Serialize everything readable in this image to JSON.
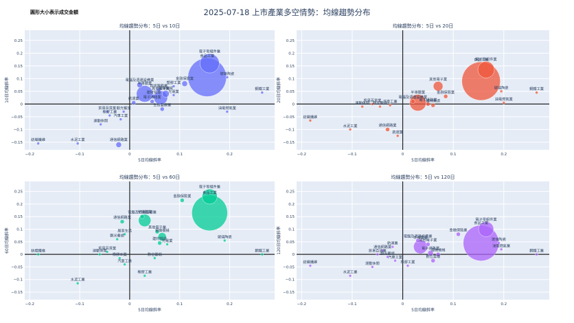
{
  "title": "2025-07-18 上市產業多空情勢：均線趨勢分布",
  "note": "圓形大小表示成交金額",
  "colors": {
    "grid": "#ffffff",
    "plot_bg": "#e5ecf6",
    "axis_line": "#222222",
    "tick": "#2a3f5f"
  },
  "chart_data": [
    {
      "type": "scatter",
      "title": "均線趨勢分布：5日 vs 10日",
      "xlabel": "5日均線斜率",
      "ylabel": "10日均線斜率",
      "color": "#636efa",
      "xlim": [
        -0.21,
        0.29
      ],
      "ylim": [
        -0.18,
        0.29
      ],
      "xticks": [
        -0.2,
        -0.1,
        0,
        0.1,
        0.2
      ],
      "xtick_labels": [
        "−0.2",
        "−0.1",
        "0",
        "0.1",
        "0.2"
      ],
      "yticks": [
        -0.15,
        -0.1,
        -0.05,
        0,
        0.05,
        0.1,
        0.15,
        0.2,
        0.25
      ],
      "ytick_labels": [
        "−0.15",
        "−0.1",
        "−0.05",
        "0",
        "0.05",
        "0.1",
        "0.15",
        "0.2",
        "0.25"
      ],
      "points": [
        {
          "label": "紡織纖維",
          "x": -0.183,
          "y": -0.155,
          "size": 2
        },
        {
          "label": "水泥工業",
          "x": -0.104,
          "y": -0.155,
          "size": 2
        },
        {
          "label": "通信網路業",
          "x": -0.022,
          "y": -0.16,
          "size": 4
        },
        {
          "label": "運動休閒",
          "x": -0.058,
          "y": -0.08,
          "size": 2
        },
        {
          "label": "貿易百貨業",
          "x": -0.045,
          "y": -0.03,
          "size": 2
        },
        {
          "label": "橡膠工業",
          "x": -0.04,
          "y": -0.045,
          "size": 2
        },
        {
          "label": "汽車工業",
          "x": -0.018,
          "y": -0.06,
          "size": 2
        },
        {
          "label": "觀光餐旅",
          "x": -0.012,
          "y": -0.03,
          "size": 2
        },
        {
          "label": "航運業",
          "x": 0.008,
          "y": 0.005,
          "size": 3
        },
        {
          "label": "電腦及週邊設備業",
          "x": 0.02,
          "y": 0.075,
          "size": 4
        },
        {
          "label": "半導體業",
          "x": 0.03,
          "y": 0.04,
          "size": 12
        },
        {
          "label": "建材營造",
          "x": 0.048,
          "y": 0.03,
          "size": 3
        },
        {
          "label": "電子通路業",
          "x": 0.045,
          "y": 0.01,
          "size": 3
        },
        {
          "label": "資訊服務業",
          "x": 0.058,
          "y": 0.055,
          "size": 3
        },
        {
          "label": "其他電子業",
          "x": 0.062,
          "y": 0.025,
          "size": 10
        },
        {
          "label": "生技醫療業",
          "x": 0.065,
          "y": -0.02,
          "size": 3
        },
        {
          "label": "電機機械",
          "x": 0.072,
          "y": 0.04,
          "size": 5
        },
        {
          "label": "光電業",
          "x": 0.088,
          "y": 0.035,
          "size": 2
        },
        {
          "label": "塑膠工業",
          "x": 0.088,
          "y": 0.07,
          "size": 2
        },
        {
          "label": "金融保險業",
          "x": 0.11,
          "y": 0.08,
          "size": 4
        },
        {
          "label": "電子零組件業",
          "x": 0.16,
          "y": 0.16,
          "size": 14
        },
        {
          "label": "食品工業",
          "x": 0.155,
          "y": 0.105,
          "size": 28
        },
        {
          "label": "油電燃氣業",
          "x": 0.195,
          "y": -0.03,
          "size": 2
        },
        {
          "label": "玻璃陶瓷",
          "x": 0.195,
          "y": 0.105,
          "size": 2
        },
        {
          "label": "鋼鐵工業",
          "x": 0.265,
          "y": 0.045,
          "size": 2
        }
      ]
    },
    {
      "type": "scatter",
      "title": "均線趨勢分布：5日 vs 20日",
      "xlabel": "5日均線斜率",
      "ylabel": "20日均線斜率",
      "color": "#ef553b",
      "xlim": [
        -0.21,
        0.29
      ],
      "ylim": [
        -0.18,
        0.29
      ],
      "xticks": [
        -0.2,
        -0.1,
        0,
        0.1,
        0.2
      ],
      "xtick_labels": [
        "−0.2",
        "−0.1",
        "0",
        "0.1",
        "0.2"
      ],
      "yticks": [
        -0.15,
        -0.1,
        -0.05,
        0,
        0.05,
        0.1,
        0.15,
        0.2,
        0.25
      ],
      "ytick_labels": [
        "−0.15",
        "−0.1",
        "−0.05",
        "0",
        "0.05",
        "0.1",
        "0.15",
        "0.2",
        "0.25"
      ],
      "points": [
        {
          "label": "紡織纖維",
          "x": -0.183,
          "y": -0.065,
          "size": 2
        },
        {
          "label": "水泥工業",
          "x": -0.104,
          "y": -0.1,
          "size": 2
        },
        {
          "label": "通信網路業",
          "x": -0.03,
          "y": -0.1,
          "size": 3
        },
        {
          "label": "航運業",
          "x": -0.01,
          "y": -0.125,
          "size": 2
        },
        {
          "label": "貿易百貨業",
          "x": -0.06,
          "y": 0.0,
          "size": 2
        },
        {
          "label": "運動休閒",
          "x": -0.08,
          "y": -0.01,
          "size": 2
        },
        {
          "label": "觀光餐旅",
          "x": -0.045,
          "y": -0.01,
          "size": 2
        },
        {
          "label": "汽車工業",
          "x": -0.025,
          "y": -0.005,
          "size": 2
        },
        {
          "label": "電腦及週邊設備業",
          "x": 0.02,
          "y": 0.01,
          "size": 3
        },
        {
          "label": "半導體業",
          "x": 0.03,
          "y": 0.005,
          "size": 12
        },
        {
          "label": "電子通路業",
          "x": 0.05,
          "y": 0.0,
          "size": 3
        },
        {
          "label": "建材營造",
          "x": 0.06,
          "y": -0.005,
          "size": 3
        },
        {
          "label": "其他電子業",
          "x": 0.07,
          "y": 0.07,
          "size": 7
        },
        {
          "label": "金融保險業",
          "x": 0.085,
          "y": 0.03,
          "size": 3
        },
        {
          "label": "電子零組件業",
          "x": 0.165,
          "y": 0.135,
          "size": 12
        },
        {
          "label": "食品工業",
          "x": 0.155,
          "y": 0.09,
          "size": 28
        },
        {
          "label": "玻璃陶瓷",
          "x": 0.195,
          "y": 0.05,
          "size": 2
        },
        {
          "label": "油電燃氣業",
          "x": 0.2,
          "y": 0.005,
          "size": 2
        },
        {
          "label": "鋼鐵工業",
          "x": 0.265,
          "y": 0.045,
          "size": 2
        }
      ]
    },
    {
      "type": "scatter",
      "title": "均線趨勢分布：5日 vs 60日",
      "xlabel": "5日均線斜率",
      "ylabel": "60日均線斜率",
      "color": "#00cc96",
      "xlim": [
        -0.21,
        0.29
      ],
      "ylim": [
        -0.18,
        0.29
      ],
      "xticks": [
        -0.2,
        -0.1,
        0,
        0.1,
        0.2
      ],
      "xtick_labels": [
        "−0.2",
        "−0.1",
        "0",
        "0.1",
        "0.2"
      ],
      "yticks": [
        -0.15,
        -0.1,
        -0.05,
        0,
        0.05,
        0.1,
        0.15,
        0.2,
        0.25
      ],
      "ytick_labels": [
        "−0.15",
        "−0.1",
        "−0.05",
        "0",
        "0.05",
        "0.1",
        "0.15",
        "0.2",
        "0.25"
      ],
      "points": [
        {
          "label": "紡織纖維",
          "x": -0.183,
          "y": 0.0,
          "size": 2
        },
        {
          "label": "水泥工業",
          "x": -0.104,
          "y": -0.115,
          "size": 2
        },
        {
          "label": "運動休閒",
          "x": -0.06,
          "y": 0.0,
          "size": 2
        },
        {
          "label": "貿易百貨業",
          "x": -0.045,
          "y": 0.01,
          "size": 2
        },
        {
          "label": "橡膠工業",
          "x": -0.02,
          "y": -0.015,
          "size": 2
        },
        {
          "label": "汽車工業",
          "x": -0.01,
          "y": -0.04,
          "size": 2
        },
        {
          "label": "通信網路業",
          "x": -0.015,
          "y": 0.13,
          "size": 3
        },
        {
          "label": "居家生活",
          "x": -0.01,
          "y": 0.08,
          "size": 2
        },
        {
          "label": "觀光餐旅",
          "x": -0.025,
          "y": 0.06,
          "size": 2
        },
        {
          "label": "電腦及週邊設備業",
          "x": 0.025,
          "y": 0.15,
          "size": 3
        },
        {
          "label": "半導體業",
          "x": 0.03,
          "y": 0.135,
          "size": 9
        },
        {
          "label": "其他電子業",
          "x": 0.055,
          "y": 0.09,
          "size": 3
        },
        {
          "label": "電機機械",
          "x": 0.065,
          "y": 0.07,
          "size": 6
        },
        {
          "label": "建材營造",
          "x": 0.06,
          "y": 0.045,
          "size": 3
        },
        {
          "label": "橡膠工業",
          "x": 0.03,
          "y": -0.085,
          "size": 2
        },
        {
          "label": "數位雲端",
          "x": 0.05,
          "y": -0.015,
          "size": 2
        },
        {
          "label": "光電業",
          "x": 0.075,
          "y": 0.04,
          "size": 2
        },
        {
          "label": "金融保險業",
          "x": 0.105,
          "y": 0.215,
          "size": 3
        },
        {
          "label": "電子零組件業",
          "x": 0.16,
          "y": 0.23,
          "size": 11
        },
        {
          "label": "食品工業",
          "x": 0.16,
          "y": 0.165,
          "size": 26
        },
        {
          "label": "玻璃陶瓷",
          "x": 0.19,
          "y": 0.055,
          "size": 2
        },
        {
          "label": "鋼鐵工業",
          "x": 0.265,
          "y": 0.0,
          "size": 2
        }
      ]
    },
    {
      "type": "scatter",
      "title": "均線趨勢分布：5日 vs 120日",
      "xlabel": "5日均線斜率",
      "ylabel": "120日均線斜率",
      "color": "#ab63fa",
      "xlim": [
        -0.21,
        0.29
      ],
      "ylim": [
        -0.18,
        0.29
      ],
      "xticks": [
        -0.2,
        -0.1,
        0,
        0.1,
        0.2
      ],
      "xtick_labels": [
        "−0.2",
        "−0.1",
        "0",
        "0.1",
        "0.2"
      ],
      "yticks": [
        -0.15,
        -0.1,
        -0.05,
        0,
        0.05,
        0.1,
        0.15,
        0.2,
        0.25
      ],
      "ytick_labels": [
        "−0.15",
        "−0.1",
        "−0.05",
        "0",
        "0.05",
        "0.1",
        "0.15",
        "0.2",
        "0.25"
      ],
      "points": [
        {
          "label": "紡織纖維",
          "x": -0.183,
          "y": -0.045,
          "size": 2
        },
        {
          "label": "水泥工業",
          "x": -0.104,
          "y": -0.085,
          "size": 2
        },
        {
          "label": "運動休閒",
          "x": -0.06,
          "y": -0.05,
          "size": 2
        },
        {
          "label": "貿易百貨業",
          "x": -0.05,
          "y": 0.0,
          "size": 2
        },
        {
          "label": "通信網路業",
          "x": -0.04,
          "y": 0.015,
          "size": 2
        },
        {
          "label": "觀光餐旅",
          "x": -0.03,
          "y": -0.01,
          "size": 2
        },
        {
          "label": "汽車工業",
          "x": -0.015,
          "y": -0.025,
          "size": 2
        },
        {
          "label": "航運業",
          "x": -0.02,
          "y": 0.03,
          "size": 2
        },
        {
          "label": "橡膠工業",
          "x": 0.01,
          "y": -0.045,
          "size": 2
        },
        {
          "label": "電腦及週邊設備業",
          "x": 0.03,
          "y": 0.055,
          "size": 3
        },
        {
          "label": "半導體業",
          "x": 0.035,
          "y": 0.03,
          "size": 10
        },
        {
          "label": "電子通路業",
          "x": 0.055,
          "y": 0.005,
          "size": 4
        },
        {
          "label": "數位雲端",
          "x": 0.06,
          "y": -0.025,
          "size": 3
        },
        {
          "label": "電機機械",
          "x": 0.07,
          "y": 0.0,
          "size": 3
        },
        {
          "label": "其他電子業",
          "x": 0.05,
          "y": 0.04,
          "size": 3
        },
        {
          "label": "金融保險業",
          "x": 0.11,
          "y": 0.08,
          "size": 3
        },
        {
          "label": "電子零組件業",
          "x": 0.165,
          "y": 0.1,
          "size": 11
        },
        {
          "label": "食品工業",
          "x": 0.155,
          "y": 0.045,
          "size": 26
        },
        {
          "label": "油電燃氣業",
          "x": 0.195,
          "y": 0.02,
          "size": 2
        },
        {
          "label": "玻璃陶瓷",
          "x": 0.19,
          "y": 0.045,
          "size": 2
        },
        {
          "label": "鋼鐵工業",
          "x": 0.265,
          "y": 0.0,
          "size": 2
        }
      ]
    }
  ]
}
